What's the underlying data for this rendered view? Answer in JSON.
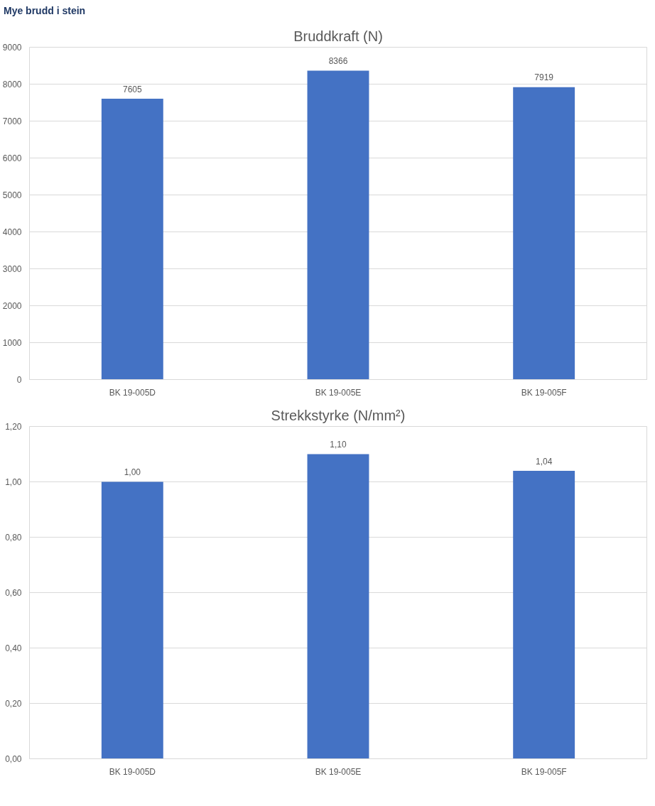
{
  "chart_data": [
    {
      "type": "bar",
      "title": "Bruddkraft (N)",
      "annotations": [
        "Mye brudd i stein"
      ],
      "categories": [
        "BK 19-005D",
        "BK 19-005E",
        "BK 19-005F"
      ],
      "values": [
        7605,
        8366,
        7919
      ],
      "color": "#4472c4",
      "ylim": [
        0,
        9000
      ],
      "yticks": [
        0,
        1000,
        2000,
        3000,
        4000,
        5000,
        6000,
        7000,
        8000,
        9000
      ],
      "grid": "y",
      "data_labels": true
    },
    {
      "type": "bar",
      "title": "Strekkstyrke (N/mm²)",
      "categories": [
        "BK 19-005D",
        "BK 19-005E",
        "BK 19-005F"
      ],
      "values": [
        1.0,
        1.1,
        1.04
      ],
      "value_labels": [
        "1,00",
        "1,10",
        "1,04"
      ],
      "color": "#4472c4",
      "ylim": [
        0,
        1.2
      ],
      "yticks": [
        {
          "value": 0,
          "label": "0,00"
        },
        {
          "value": 0.2,
          "label": "0,20"
        },
        {
          "value": 0.4,
          "label": "0,40"
        },
        {
          "value": 0.6,
          "label": "0,60"
        },
        {
          "value": 0.8,
          "label": "0,80"
        },
        {
          "value": 1.0,
          "label": "1,00"
        },
        {
          "value": 1.2,
          "label": "1,20"
        }
      ],
      "grid": "y"
    }
  ]
}
